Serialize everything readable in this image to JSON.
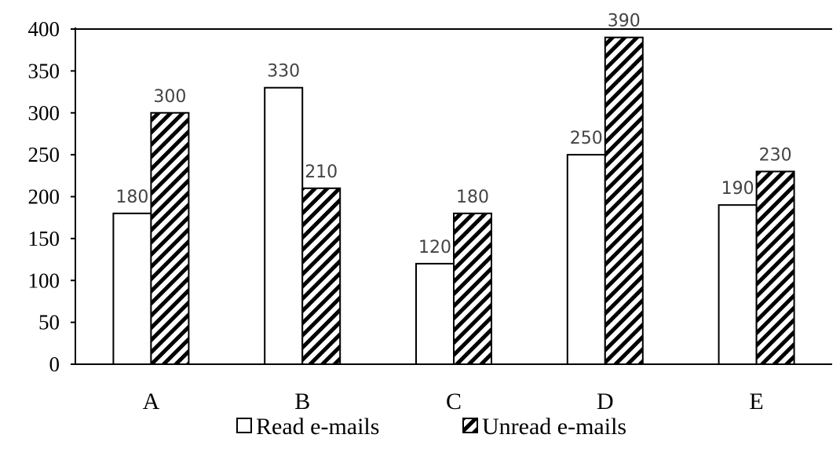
{
  "chart_data": {
    "type": "bar",
    "title": "",
    "xlabel": "",
    "ylabel": "",
    "categories": [
      "A",
      "B",
      "C",
      "D",
      "E"
    ],
    "series": [
      {
        "name": "Read e-mails",
        "values": [
          180,
          330,
          120,
          250,
          190
        ],
        "fill": "#ffffff",
        "pattern": "none"
      },
      {
        "name": "Unread e-mails",
        "values": [
          300,
          210,
          180,
          390,
          230
        ],
        "fill": "#ffffff",
        "pattern": "diagonal-hatch"
      }
    ],
    "ylim": [
      0,
      400
    ],
    "yticks": [
      0,
      50,
      100,
      150,
      200,
      250,
      300,
      350,
      400
    ],
    "grid": false,
    "legend_position": "bottom",
    "data_labels": true,
    "colors": {
      "stroke": "#000000",
      "hatch": "#000000",
      "label": "#444444"
    }
  }
}
